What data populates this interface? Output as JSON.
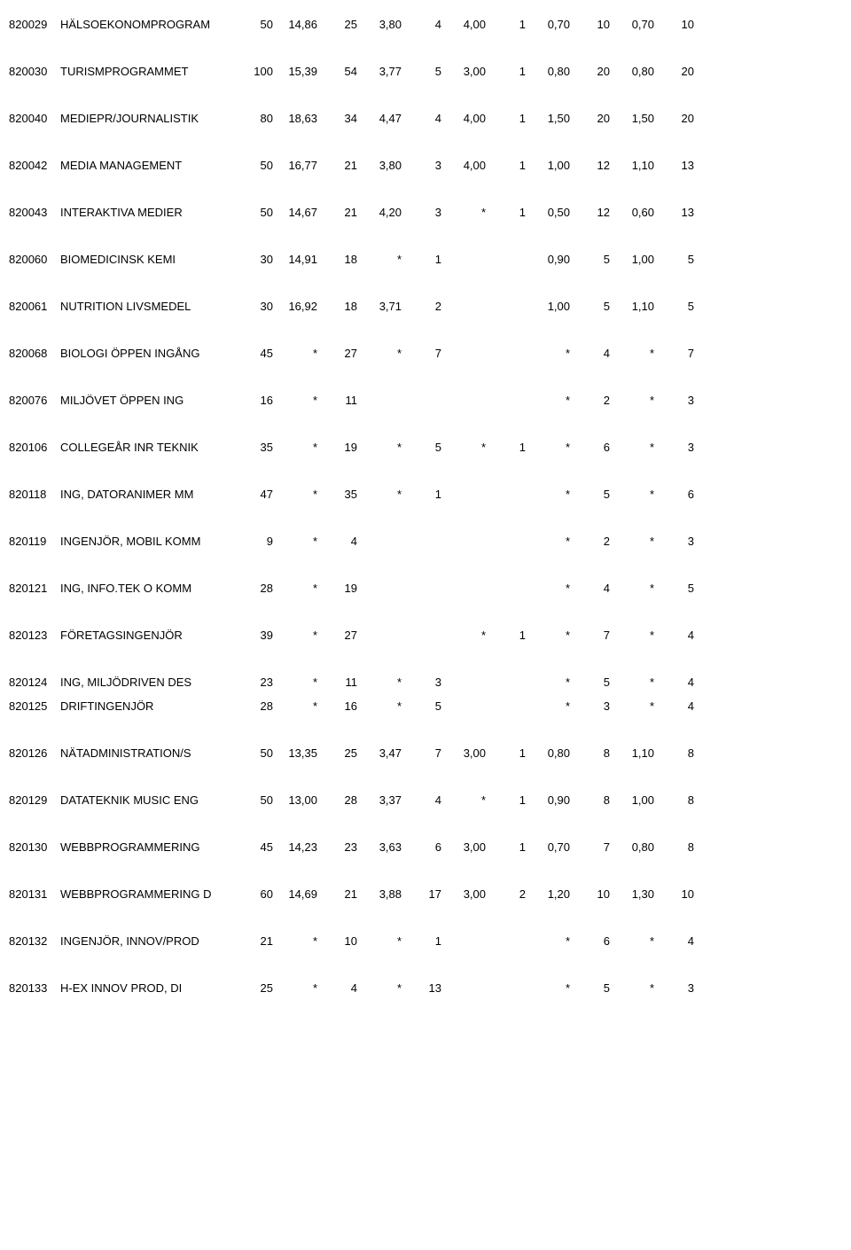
{
  "columns": [
    "code",
    "name",
    "c1",
    "c2",
    "c3",
    "c4",
    "c5",
    "c6",
    "c7",
    "c8",
    "c9",
    "c10",
    "c11"
  ],
  "rows": [
    {
      "code": "820029",
      "name": "HÄLSOEKONOMPROGRAM",
      "c1": "50",
      "c2": "14,86",
      "c3": "25",
      "c4": "3,80",
      "c5": "4",
      "c6": "4,00",
      "c7": "1",
      "c8": "0,70",
      "c9": "10",
      "c10": "0,70",
      "c11": "10",
      "tight": false
    },
    {
      "code": "820030",
      "name": "TURISMPROGRAMMET",
      "c1": "100",
      "c2": "15,39",
      "c3": "54",
      "c4": "3,77",
      "c5": "5",
      "c6": "3,00",
      "c7": "1",
      "c8": "0,80",
      "c9": "20",
      "c10": "0,80",
      "c11": "20",
      "tight": false
    },
    {
      "code": "820040",
      "name": "MEDIEPR/JOURNALISTIK",
      "c1": "80",
      "c2": "18,63",
      "c3": "34",
      "c4": "4,47",
      "c5": "4",
      "c6": "4,00",
      "c7": "1",
      "c8": "1,50",
      "c9": "20",
      "c10": "1,50",
      "c11": "20",
      "tight": false
    },
    {
      "code": "820042",
      "name": "MEDIA MANAGEMENT",
      "c1": "50",
      "c2": "16,77",
      "c3": "21",
      "c4": "3,80",
      "c5": "3",
      "c6": "4,00",
      "c7": "1",
      "c8": "1,00",
      "c9": "12",
      "c10": "1,10",
      "c11": "13",
      "tight": false
    },
    {
      "code": "820043",
      "name": "INTERAKTIVA MEDIER",
      "c1": "50",
      "c2": "14,67",
      "c3": "21",
      "c4": "4,20",
      "c5": "3",
      "c6": "*",
      "c7": "1",
      "c8": "0,50",
      "c9": "12",
      "c10": "0,60",
      "c11": "13",
      "tight": false
    },
    {
      "code": "820060",
      "name": "BIOMEDICINSK KEMI",
      "c1": "30",
      "c2": "14,91",
      "c3": "18",
      "c4": "*",
      "c5": "1",
      "c6": "",
      "c7": "",
      "c8": "0,90",
      "c9": "5",
      "c10": "1,00",
      "c11": "5",
      "tight": false
    },
    {
      "code": "820061",
      "name": "NUTRITION LIVSMEDEL",
      "c1": "30",
      "c2": "16,92",
      "c3": "18",
      "c4": "3,71",
      "c5": "2",
      "c6": "",
      "c7": "",
      "c8": "1,00",
      "c9": "5",
      "c10": "1,10",
      "c11": "5",
      "tight": false
    },
    {
      "code": "820068",
      "name": "BIOLOGI ÖPPEN INGÅNG",
      "c1": "45",
      "c2": "*",
      "c3": "27",
      "c4": "*",
      "c5": "7",
      "c6": "",
      "c7": "",
      "c8": "*",
      "c9": "4",
      "c10": "*",
      "c11": "7",
      "tight": false
    },
    {
      "code": "820076",
      "name": "MILJÖVET ÖPPEN ING",
      "c1": "16",
      "c2": "*",
      "c3": "11",
      "c4": "",
      "c5": "",
      "c6": "",
      "c7": "",
      "c8": "*",
      "c9": "2",
      "c10": "*",
      "c11": "3",
      "tight": false
    },
    {
      "code": "820106",
      "name": "COLLEGEÅR INR TEKNIK",
      "c1": "35",
      "c2": "*",
      "c3": "19",
      "c4": "*",
      "c5": "5",
      "c6": "*",
      "c7": "1",
      "c8": "*",
      "c9": "6",
      "c10": "*",
      "c11": "3",
      "tight": false
    },
    {
      "code": "820118",
      "name": "ING, DATORANIMER MM",
      "c1": "47",
      "c2": "*",
      "c3": "35",
      "c4": "*",
      "c5": "1",
      "c6": "",
      "c7": "",
      "c8": "*",
      "c9": "5",
      "c10": "*",
      "c11": "6",
      "tight": false
    },
    {
      "code": "820119",
      "name": "INGENJÖR, MOBIL KOMM",
      "c1": "9",
      "c2": "*",
      "c3": "4",
      "c4": "",
      "c5": "",
      "c6": "",
      "c7": "",
      "c8": "*",
      "c9": "2",
      "c10": "*",
      "c11": "3",
      "tight": false
    },
    {
      "code": "820121",
      "name": "ING, INFO.TEK O KOMM",
      "c1": "28",
      "c2": "*",
      "c3": "19",
      "c4": "",
      "c5": "",
      "c6": "",
      "c7": "",
      "c8": "*",
      "c9": "4",
      "c10": "*",
      "c11": "5",
      "tight": false
    },
    {
      "code": "820123",
      "name": "FÖRETAGSINGENJÖR",
      "c1": "39",
      "c2": "*",
      "c3": "27",
      "c4": "",
      "c5": "",
      "c6": "*",
      "c7": "1",
      "c8": "*",
      "c9": "7",
      "c10": "*",
      "c11": "4",
      "tight": false
    },
    {
      "code": "820124",
      "name": "ING, MILJÖDRIVEN DES",
      "c1": "23",
      "c2": "*",
      "c3": "11",
      "c4": "*",
      "c5": "3",
      "c6": "",
      "c7": "",
      "c8": "*",
      "c9": "5",
      "c10": "*",
      "c11": "4",
      "tight": true
    },
    {
      "code": "820125",
      "name": "DRIFTINGENJÖR",
      "c1": "28",
      "c2": "*",
      "c3": "16",
      "c4": "*",
      "c5": "5",
      "c6": "",
      "c7": "",
      "c8": "*",
      "c9": "3",
      "c10": "*",
      "c11": "4",
      "tight": false
    },
    {
      "code": "820126",
      "name": "NÄTADMINISTRATION/S",
      "c1": "50",
      "c2": "13,35",
      "c3": "25",
      "c4": "3,47",
      "c5": "7",
      "c6": "3,00",
      "c7": "1",
      "c8": "0,80",
      "c9": "8",
      "c10": "1,10",
      "c11": "8",
      "tight": false
    },
    {
      "code": "820129",
      "name": "DATATEKNIK MUSIC ENG",
      "c1": "50",
      "c2": "13,00",
      "c3": "28",
      "c4": "3,37",
      "c5": "4",
      "c6": "*",
      "c7": "1",
      "c8": "0,90",
      "c9": "8",
      "c10": "1,00",
      "c11": "8",
      "tight": false
    },
    {
      "code": "820130",
      "name": "WEBBPROGRAMMERING",
      "c1": "45",
      "c2": "14,23",
      "c3": "23",
      "c4": "3,63",
      "c5": "6",
      "c6": "3,00",
      "c7": "1",
      "c8": "0,70",
      "c9": "7",
      "c10": "0,80",
      "c11": "8",
      "tight": false
    },
    {
      "code": "820131",
      "name": "WEBBPROGRAMMERING D",
      "c1": "60",
      "c2": "14,69",
      "c3": "21",
      "c4": "3,88",
      "c5": "17",
      "c6": "3,00",
      "c7": "2",
      "c8": "1,20",
      "c9": "10",
      "c10": "1,30",
      "c11": "10",
      "tight": false
    },
    {
      "code": "820132",
      "name": "INGENJÖR, INNOV/PROD",
      "c1": "21",
      "c2": "*",
      "c3": "10",
      "c4": "*",
      "c5": "1",
      "c6": "",
      "c7": "",
      "c8": "*",
      "c9": "6",
      "c10": "*",
      "c11": "4",
      "tight": false
    },
    {
      "code": "820133",
      "name": "H-EX INNOV PROD, DI",
      "c1": "25",
      "c2": "*",
      "c3": "4",
      "c4": "*",
      "c5": "13",
      "c6": "",
      "c7": "",
      "c8": "*",
      "c9": "5",
      "c10": "*",
      "c11": "3",
      "tight": false
    }
  ]
}
